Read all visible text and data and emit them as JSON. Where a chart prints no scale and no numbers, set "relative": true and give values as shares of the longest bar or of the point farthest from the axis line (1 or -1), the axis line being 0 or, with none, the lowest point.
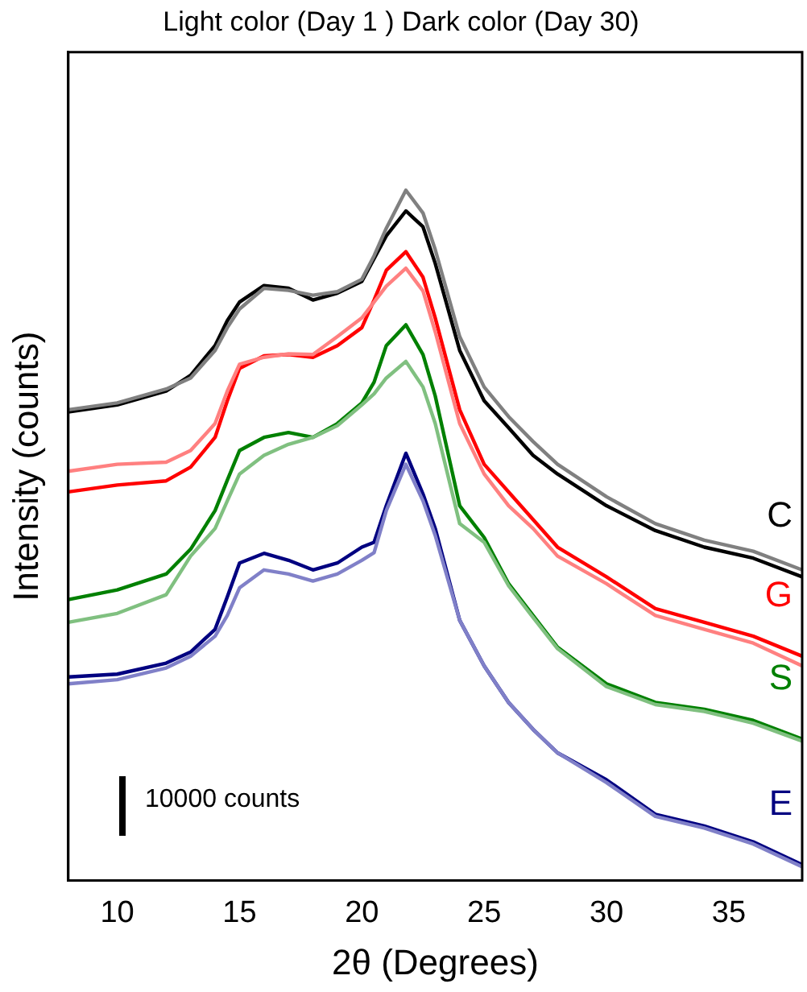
{
  "chart_data": {
    "type": "line",
    "title": "Light color (Day 1 ) Dark color (Day 30)",
    "xlabel": "2θ (Degrees)",
    "ylabel": "Intensity (counts)",
    "annotations": [
      "10000 counts"
    ],
    "relative": true,
    "marker": "none",
    "xlim": [
      8,
      38
    ],
    "xticks": [
      10,
      15,
      20,
      25,
      30,
      35
    ],
    "x": [
      8,
      10,
      12,
      13,
      14,
      14.5,
      15,
      16,
      17,
      18,
      19,
      20,
      20.5,
      21,
      21.8,
      22.5,
      23,
      24,
      25,
      26,
      27,
      28,
      30,
      32,
      34,
      36,
      38
    ],
    "series": [
      {
        "color": "#808080",
        "values": [
          0.682,
          0.692,
          0.712,
          0.728,
          0.768,
          0.801,
          0.828,
          0.858,
          0.855,
          0.848,
          0.853,
          0.871,
          0.905,
          0.945,
          1,
          0.967,
          0.914,
          0.788,
          0.715,
          0.672,
          0.636,
          0.603,
          0.556,
          0.517,
          0.493,
          0.477,
          0.45
        ]
      },
      {
        "name": "C",
        "color": "#000000",
        "values": [
          0.679,
          0.689,
          0.709,
          0.732,
          0.775,
          0.811,
          0.838,
          0.862,
          0.858,
          0.841,
          0.851,
          0.868,
          0.901,
          0.934,
          0.97,
          0.947,
          0.894,
          0.768,
          0.695,
          0.656,
          0.616,
          0.589,
          0.543,
          0.507,
          0.483,
          0.467,
          0.44
        ]
      },
      {
        "color": "#ff8080",
        "values": [
          0.593,
          0.603,
          0.606,
          0.623,
          0.662,
          0.709,
          0.748,
          0.758,
          0.763,
          0.762,
          0.788,
          0.815,
          0.838,
          0.861,
          0.887,
          0.854,
          0.795,
          0.662,
          0.589,
          0.543,
          0.51,
          0.47,
          0.43,
          0.384,
          0.364,
          0.344,
          0.311
        ]
      },
      {
        "name": "G",
        "color": "#ff0000",
        "values": [
          0.563,
          0.573,
          0.579,
          0.599,
          0.642,
          0.695,
          0.742,
          0.76,
          0.762,
          0.758,
          0.775,
          0.801,
          0.841,
          0.884,
          0.911,
          0.874,
          0.815,
          0.682,
          0.603,
          0.563,
          0.523,
          0.483,
          0.44,
          0.394,
          0.374,
          0.354,
          0.325
        ]
      },
      {
        "color": "#80c080",
        "values": [
          0.374,
          0.387,
          0.414,
          0.47,
          0.51,
          0.55,
          0.589,
          0.616,
          0.632,
          0.642,
          0.659,
          0.689,
          0.705,
          0.728,
          0.752,
          0.715,
          0.662,
          0.517,
          0.49,
          0.427,
          0.381,
          0.336,
          0.281,
          0.255,
          0.245,
          0.228,
          0.202
        ]
      },
      {
        "name": "S",
        "color": "#008000",
        "values": [
          0.407,
          0.421,
          0.444,
          0.48,
          0.536,
          0.58,
          0.623,
          0.642,
          0.649,
          0.642,
          0.662,
          0.692,
          0.722,
          0.775,
          0.805,
          0.762,
          0.702,
          0.543,
          0.497,
          0.43,
          0.384,
          0.338,
          0.285,
          0.258,
          0.248,
          0.232,
          0.205
        ]
      },
      {
        "color": "#8080c8",
        "values": [
          0.285,
          0.291,
          0.308,
          0.325,
          0.354,
          0.384,
          0.424,
          0.45,
          0.444,
          0.434,
          0.444,
          0.464,
          0.475,
          0.536,
          0.603,
          0.55,
          0.5,
          0.377,
          0.311,
          0.258,
          0.219,
          0.185,
          0.142,
          0.093,
          0.076,
          0.053,
          0.02
        ]
      },
      {
        "name": "E",
        "color": "#000080",
        "values": [
          0.295,
          0.299,
          0.315,
          0.331,
          0.364,
          0.411,
          0.46,
          0.474,
          0.464,
          0.45,
          0.46,
          0.483,
          0.49,
          0.543,
          0.619,
          0.56,
          0.51,
          0.377,
          0.311,
          0.258,
          0.219,
          0.185,
          0.146,
          0.096,
          0.079,
          0.056,
          0.023
        ]
      }
    ]
  }
}
